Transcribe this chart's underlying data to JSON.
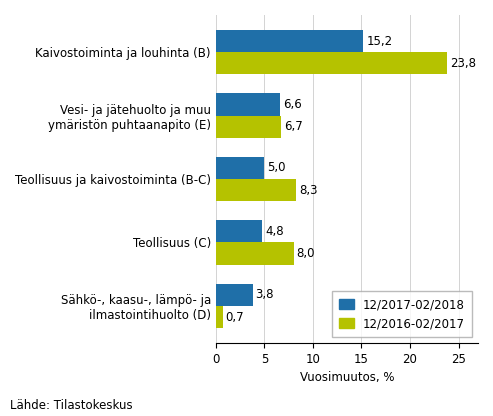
{
  "categories": [
    "Kaivostoiminta ja louhinta (B)",
    "Vesi- ja jätehuolto ja muu\nymäristön puhtaanapito (E)",
    "Teollisuus ja kaivostoiminta (B-C)",
    "Teollisuus (C)",
    "Sähkö-, kaasu-, lämpö- ja\nilmastointihuolto (D)"
  ],
  "series1_label": "12/2017-02/2018",
  "series2_label": "12/2016-02/2017",
  "series1_values": [
    15.2,
    6.6,
    5.0,
    4.8,
    3.8
  ],
  "series2_values": [
    23.8,
    6.7,
    8.3,
    8.0,
    0.7
  ],
  "series1_color": "#1f6fa8",
  "series2_color": "#b5c200",
  "xlabel": "Vuosimuutos, %",
  "xlim": [
    0,
    27
  ],
  "xticks": [
    0,
    5,
    10,
    15,
    20,
    25
  ],
  "source_text": "Lähde: Tilastokeskus",
  "bar_height": 0.35,
  "label_fontsize": 8.5,
  "tick_fontsize": 8.5,
  "source_fontsize": 8.5,
  "legend_fontsize": 8.5
}
